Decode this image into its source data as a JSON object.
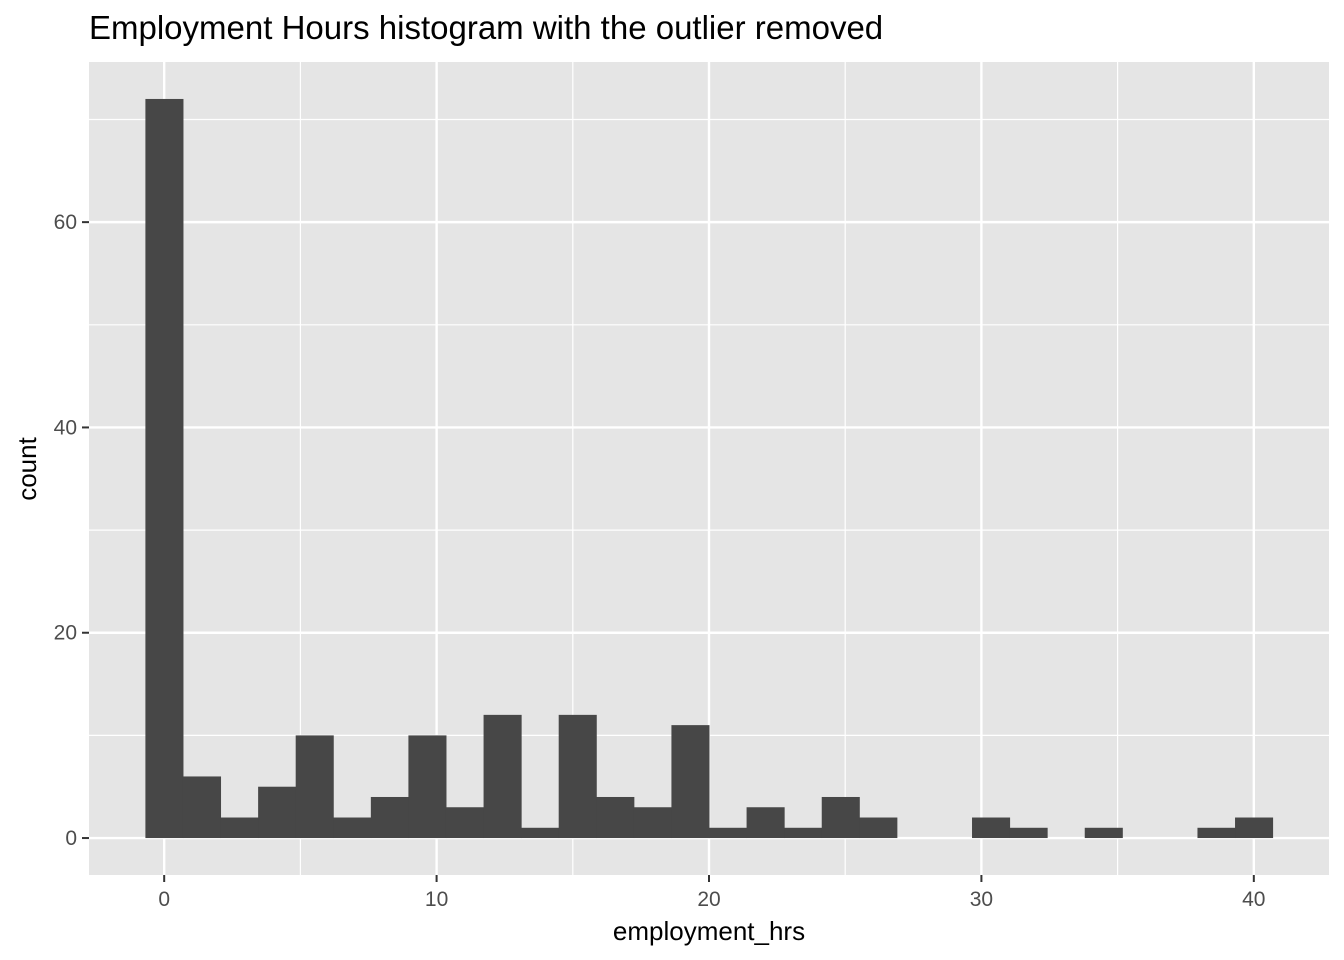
{
  "chart_data": {
    "type": "bar",
    "title": "Employment Hours histogram with the outlier removed",
    "xlabel": "employment_hrs",
    "ylabel": "count",
    "bin_width": 1.379,
    "bins": [
      {
        "x": 0.0,
        "count": 72
      },
      {
        "x": 1.379,
        "count": 6
      },
      {
        "x": 2.759,
        "count": 2
      },
      {
        "x": 4.138,
        "count": 5
      },
      {
        "x": 5.517,
        "count": 10
      },
      {
        "x": 6.897,
        "count": 2
      },
      {
        "x": 8.276,
        "count": 4
      },
      {
        "x": 9.655,
        "count": 10
      },
      {
        "x": 11.034,
        "count": 3
      },
      {
        "x": 12.414,
        "count": 12
      },
      {
        "x": 13.793,
        "count": 1
      },
      {
        "x": 15.172,
        "count": 12
      },
      {
        "x": 16.552,
        "count": 4
      },
      {
        "x": 17.931,
        "count": 3
      },
      {
        "x": 19.31,
        "count": 11
      },
      {
        "x": 20.69,
        "count": 1
      },
      {
        "x": 22.069,
        "count": 3
      },
      {
        "x": 23.448,
        "count": 1
      },
      {
        "x": 24.828,
        "count": 4
      },
      {
        "x": 26.207,
        "count": 2
      },
      {
        "x": 27.586,
        "count": 0
      },
      {
        "x": 28.966,
        "count": 0
      },
      {
        "x": 30.345,
        "count": 2
      },
      {
        "x": 31.724,
        "count": 1
      },
      {
        "x": 33.103,
        "count": 0
      },
      {
        "x": 34.483,
        "count": 1
      },
      {
        "x": 35.862,
        "count": 0
      },
      {
        "x": 37.241,
        "count": 0
      },
      {
        "x": 38.621,
        "count": 1
      },
      {
        "x": 40.0,
        "count": 2
      }
    ],
    "xlim": [
      -2.76,
      42.76
    ],
    "ylim": [
      -3.6,
      75.6
    ],
    "x_ticks": [
      0,
      10,
      20,
      30,
      40
    ],
    "y_ticks": [
      0,
      20,
      40,
      60
    ],
    "x_minor": [
      5,
      15,
      25,
      35
    ],
    "y_minor": [
      10,
      30,
      50,
      70
    ],
    "grid": true,
    "colors": {
      "panel": "#e5e5e5",
      "grid": "#ffffff",
      "bar": "#474747",
      "tick_text": "#4d4d4d",
      "tick_mark": "#333333"
    }
  }
}
